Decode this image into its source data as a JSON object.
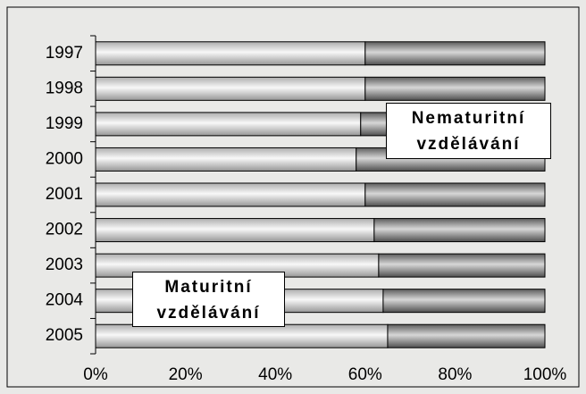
{
  "chart_data": {
    "type": "stacked-bar-horizontal",
    "categories": [
      "1997",
      "1998",
      "1999",
      "2000",
      "2001",
      "2002",
      "2003",
      "2004",
      "2005"
    ],
    "series": [
      {
        "name": "Maturitní vzdělávání",
        "color": "#e6e6e6",
        "values": [
          60,
          60,
          59,
          58,
          60,
          62,
          63,
          64,
          65
        ]
      },
      {
        "name": "Nematuritní vzdělávání",
        "color": "#7a7a7a",
        "values": [
          40,
          40,
          41,
          42,
          40,
          38,
          37,
          36,
          35
        ]
      }
    ],
    "xlim": [
      0,
      100
    ],
    "xticks": [
      {
        "value": 0,
        "label": "0%"
      },
      {
        "value": 20,
        "label": "20%"
      },
      {
        "value": 40,
        "label": "40%"
      },
      {
        "value": 60,
        "label": "60%"
      },
      {
        "value": 80,
        "label": "80%"
      },
      {
        "value": 100,
        "label": "100%"
      }
    ]
  }
}
